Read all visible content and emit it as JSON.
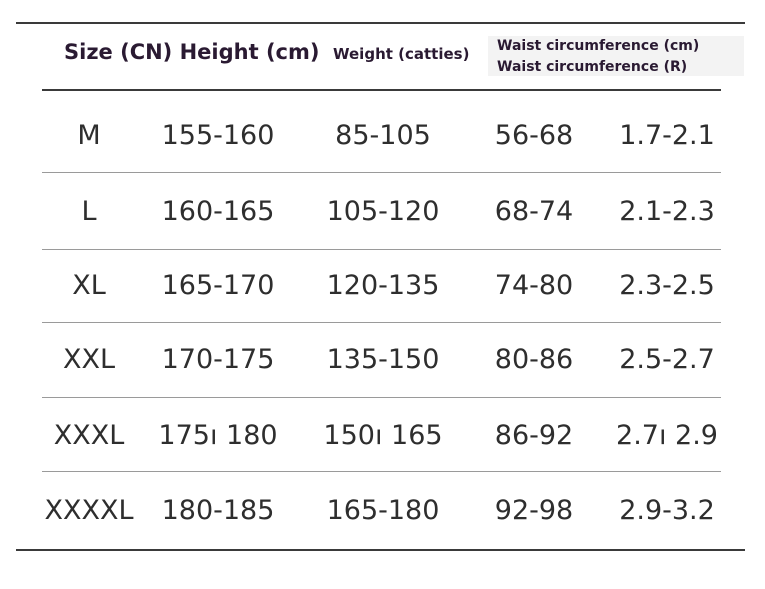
{
  "table": {
    "headers": {
      "size_height": "Size (CN) Height (cm)",
      "weight": "Weight (catties)",
      "waist_cm": "Waist circumference (cm)",
      "waist_r": "Waist circumference (R)"
    },
    "rows": [
      {
        "size": "M",
        "height": "155-160",
        "weight": "85-105",
        "waist_cm": "56-68",
        "waist_r": "1.7-2.1"
      },
      {
        "size": "L",
        "height": "160-165",
        "weight": "105-120",
        "waist_cm": "68-74",
        "waist_r": "2.1-2.3"
      },
      {
        "size": "XL",
        "height": "165-170",
        "weight": "120-135",
        "waist_cm": "74-80",
        "waist_r": "2.3-2.5"
      },
      {
        "size": "XXL",
        "height": "170-175",
        "weight": "135-150",
        "waist_cm": "80-86",
        "waist_r": "2.5-2.7"
      },
      {
        "size": "XXXL",
        "height": "175ı 180",
        "weight": "150ı 165",
        "waist_cm": "86-92",
        "waist_r": "2.7ı 2.9"
      },
      {
        "size": "XXXXL",
        "height": "180-185",
        "weight": "165-180",
        "waist_cm": "92-98",
        "waist_r": "2.9-3.2"
      }
    ]
  }
}
